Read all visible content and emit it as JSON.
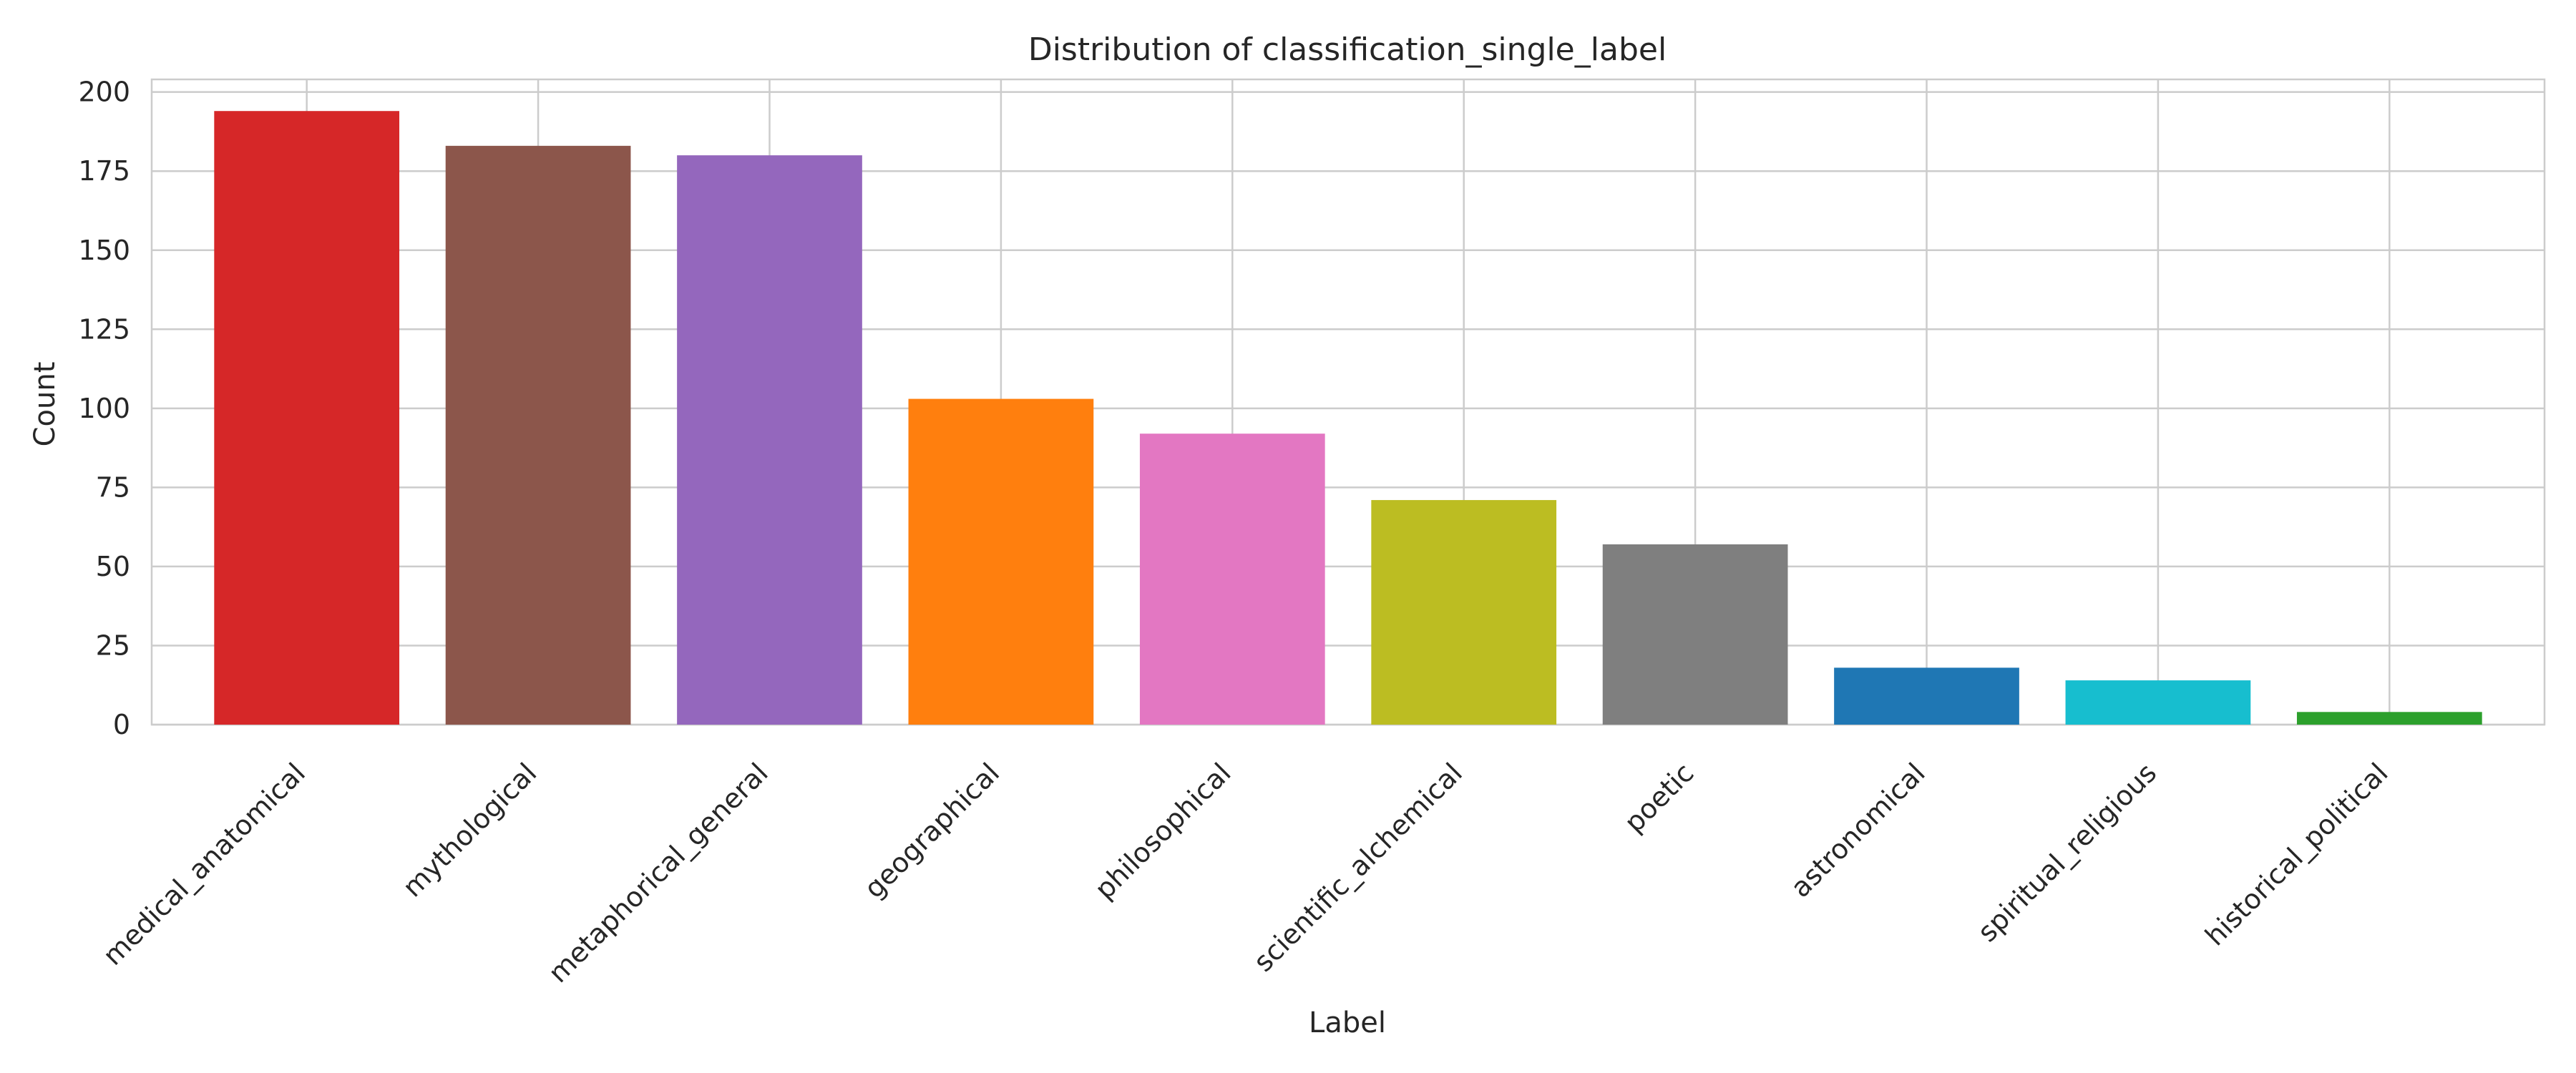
{
  "chart_data": {
    "type": "bar",
    "title": "Distribution of classification_single_label",
    "xlabel": "Label",
    "ylabel": "Count",
    "ylim": [
      0,
      204
    ],
    "yticks": [
      0,
      25,
      50,
      75,
      100,
      125,
      150,
      175,
      200
    ],
    "grid": true,
    "categories": [
      "medical_anatomical",
      "mythological",
      "metaphorical_general",
      "geographical",
      "philosophical",
      "scientific_alchemical",
      "poetic",
      "astronomical",
      "spiritual_religious",
      "historical_political"
    ],
    "values": [
      194,
      183,
      180,
      103,
      92,
      71,
      57,
      18,
      14,
      4
    ],
    "colors": [
      "#d62728",
      "#8c564b",
      "#9467bd",
      "#ff7f0e",
      "#e377c2",
      "#bcbd22",
      "#7f7f7f",
      "#1f77b4",
      "#17becf",
      "#2ca02c"
    ]
  }
}
